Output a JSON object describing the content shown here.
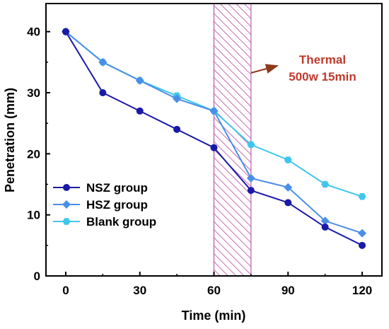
{
  "chart_data": {
    "type": "line",
    "xlabel": "Time (min)",
    "ylabel": "Penetration (mm)",
    "xlim": [
      -8,
      128
    ],
    "ylim": [
      0,
      44.6
    ],
    "xticks": [
      0,
      30,
      60,
      90,
      120
    ],
    "yticks": [
      0,
      10,
      20,
      30,
      40
    ],
    "grid": false,
    "legend_position": "bottom-left",
    "highlight_band": {
      "from": 60,
      "to": 75,
      "pattern": "diagonal-hatch",
      "color": "#b03aa0"
    },
    "annotation": {
      "lines": [
        "Thermal",
        "500w 15min"
      ],
      "color": "#c0392b"
    },
    "series": [
      {
        "name": "NSZ group",
        "color": "#1a1aa6",
        "marker": "circle",
        "x": [
          0,
          15,
          30,
          45,
          60,
          75,
          90,
          105,
          120
        ],
        "y": [
          40,
          30,
          27,
          24,
          21,
          14,
          12,
          8,
          5
        ]
      },
      {
        "name": "HSZ group",
        "color": "#4a8ee8",
        "marker": "diamond",
        "x": [
          0,
          15,
          30,
          45,
          60,
          75,
          90,
          105,
          120
        ],
        "y": [
          40,
          35,
          32,
          29,
          27,
          16,
          14.5,
          9,
          7
        ]
      },
      {
        "name": "Blank group",
        "color": "#3fc6ee",
        "marker": "hexagon",
        "x": [
          0,
          15,
          30,
          45,
          60,
          75,
          90,
          105,
          120
        ],
        "y": [
          40,
          35,
          32,
          29.5,
          27,
          21.5,
          19,
          15,
          13
        ]
      }
    ]
  }
}
